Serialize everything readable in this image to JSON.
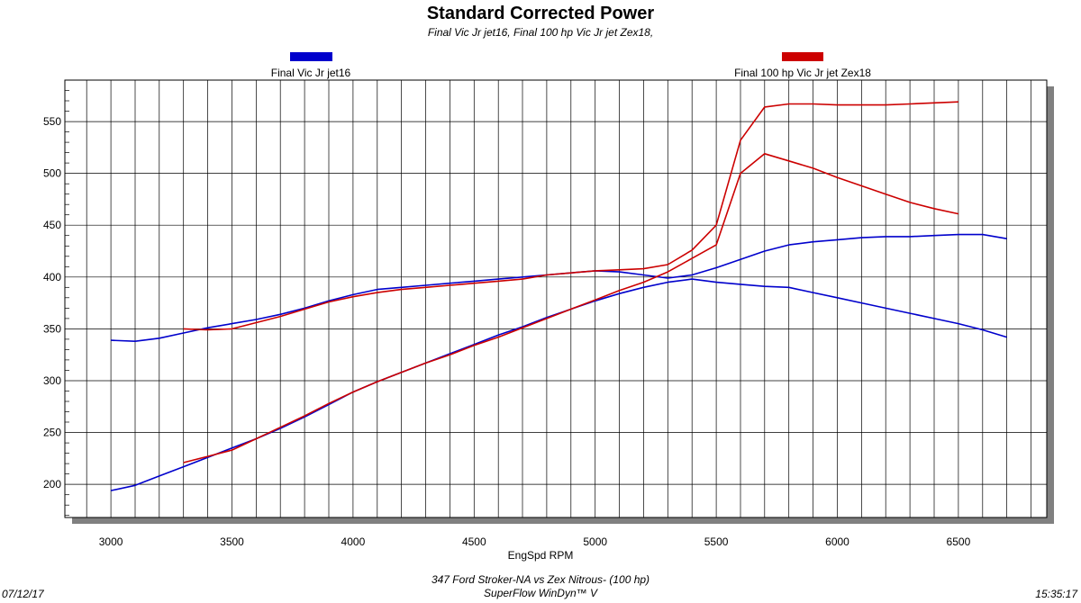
{
  "title": "Standard Corrected Power",
  "subtitle": "Final Vic Jr jet16, Final 100 hp Vic Jr jet Zex18,",
  "footer": {
    "line1": "347 Ford Stroker-NA vs Zex Nitrous- (100 hp)",
    "line2": "SuperFlow WinDyn™ V",
    "date": "07/12/17",
    "time": "15:35:17"
  },
  "chart_data": {
    "type": "line",
    "xlabel": "EngSpd RPM",
    "ylabel": "",
    "xlim": [
      2810,
      6865
    ],
    "ylim": [
      168,
      590
    ],
    "xticks": [
      3000,
      3500,
      4000,
      4500,
      5000,
      5500,
      6000,
      6500
    ],
    "yticks": [
      200,
      250,
      300,
      350,
      400,
      450,
      500,
      550
    ],
    "grid": true,
    "legend_position": "top",
    "series": [
      {
        "name": "Final Vic Jr jet16",
        "color": "#0000cc",
        "lines": [
          {
            "x": [
              3000,
              3100,
              3200,
              3300,
              3400,
              3500,
              3600,
              3700,
              3800,
              3900,
              4000,
              4100,
              4200,
              4300,
              4400,
              4500,
              4600,
              4700,
              4800,
              4900,
              5000,
              5100,
              5200,
              5300,
              5400,
              5500,
              5600,
              5700,
              5800,
              5900,
              6000,
              6100,
              6200,
              6300,
              6400,
              6500,
              6600,
              6700
            ],
            "y": [
              194,
              199,
              208,
              217,
              226,
              235,
              244,
              254,
              265,
              277,
              289,
              299,
              308,
              317,
              326,
              335,
              344,
              352,
              361,
              369,
              377,
              384,
              390,
              395,
              398,
              395,
              393,
              391,
              390,
              385,
              380,
              375,
              370,
              365,
              360,
              355,
              349,
              342
            ]
          },
          {
            "x": [
              3000,
              3100,
              3200,
              3300,
              3400,
              3500,
              3600,
              3700,
              3800,
              3900,
              4000,
              4100,
              4200,
              4300,
              4400,
              4500,
              4600,
              4700,
              4800,
              4900,
              5000,
              5100,
              5200,
              5300,
              5400,
              5500,
              5600,
              5700,
              5800,
              5900,
              6000,
              6100,
              6200,
              6300,
              6400,
              6500,
              6600,
              6700
            ],
            "y": [
              339,
              338,
              341,
              346,
              351,
              355,
              359,
              364,
              370,
              377,
              383,
              388,
              390,
              392,
              394,
              396,
              398,
              400,
              402,
              404,
              406,
              405,
              402,
              399,
              402,
              409,
              417,
              425,
              431,
              434,
              436,
              438,
              439,
              439,
              440,
              441,
              441,
              437
            ]
          }
        ]
      },
      {
        "name": "Final 100 hp Vic Jr jet Zex18",
        "color": "#cc0000",
        "lines": [
          {
            "x": [
              3300,
              3400,
              3500,
              3600,
              3700,
              3800,
              3900,
              4000,
              4100,
              4200,
              4300,
              4400,
              4500,
              4600,
              4700,
              4800,
              4900,
              5000,
              5100,
              5200,
              5300,
              5400,
              5500,
              5600,
              5700,
              5800,
              5900,
              6000,
              6100,
              6200,
              6300,
              6400,
              6500
            ],
            "y": [
              221,
              227,
              233,
              244,
              255,
              266,
              278,
              289,
              299,
              308,
              317,
              325,
              334,
              342,
              351,
              360,
              369,
              378,
              387,
              395,
              405,
              418,
              431,
              500,
              519,
              512,
              505,
              496,
              488,
              480,
              472,
              466,
              461
            ]
          },
          {
            "x": [
              3300,
              3400,
              3500,
              3600,
              3700,
              3800,
              3900,
              4000,
              4100,
              4200,
              4300,
              4400,
              4500,
              4600,
              4700,
              4800,
              4900,
              5000,
              5100,
              5200,
              5300,
              5400,
              5500,
              5600,
              5700,
              5800,
              5900,
              6000,
              6100,
              6200,
              6300,
              6400,
              6500
            ],
            "y": [
              350,
              349,
              350,
              356,
              362,
              369,
              376,
              381,
              385,
              388,
              390,
              392,
              394,
              396,
              398,
              402,
              404,
              406,
              407,
              408,
              412,
              426,
              450,
              532,
              564,
              567,
              567,
              566,
              566,
              566,
              567,
              568,
              569
            ]
          }
        ]
      }
    ]
  }
}
